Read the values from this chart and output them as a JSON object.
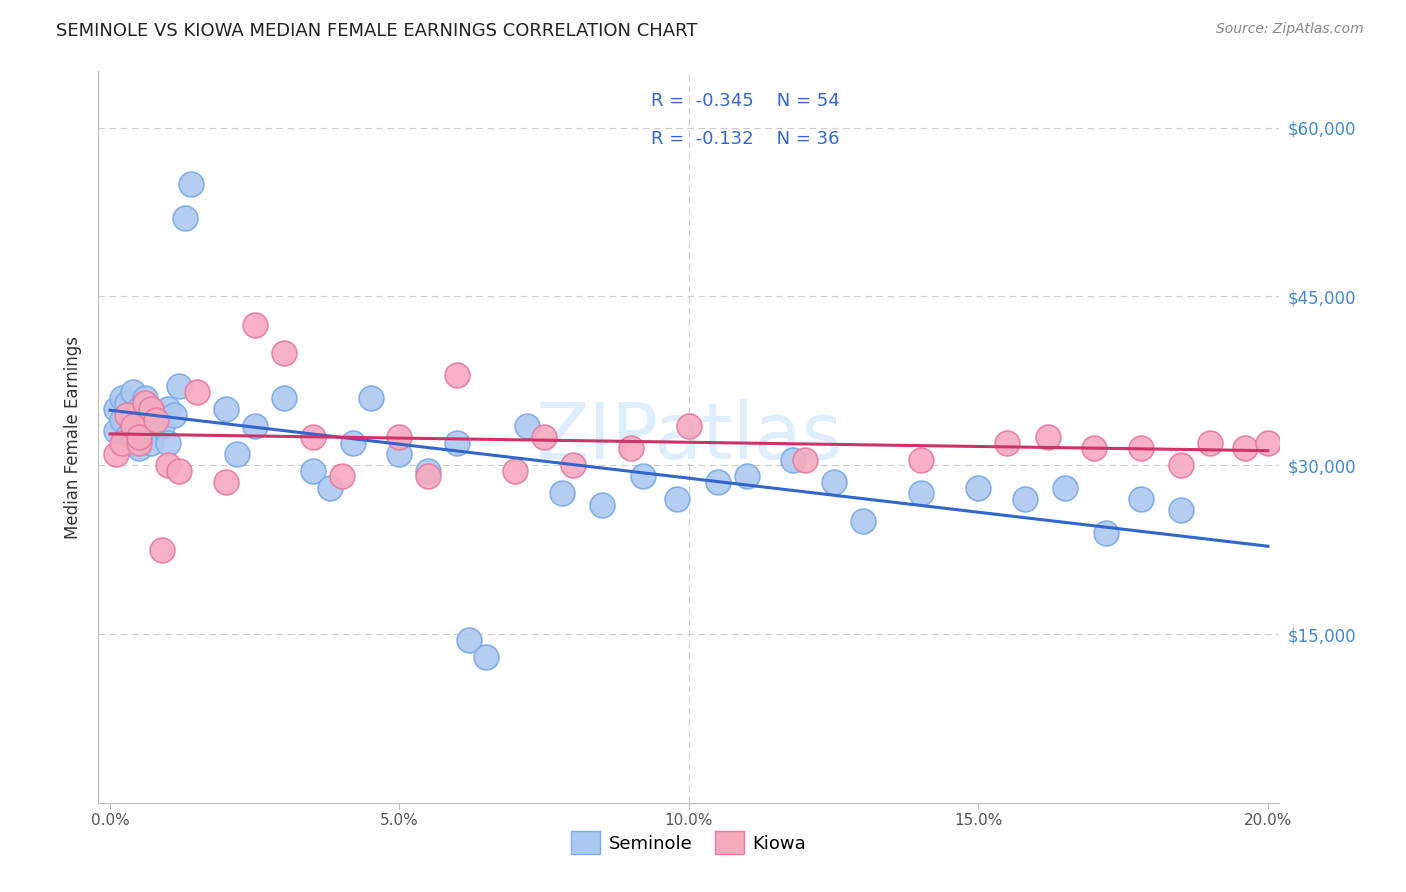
{
  "title": "SEMINOLE VS KIOWA MEDIAN FEMALE EARNINGS CORRELATION CHART",
  "source": "Source: ZipAtlas.com",
  "ylabel": "Median Female Earnings",
  "xlim": [
    -0.002,
    0.202
  ],
  "ylim": [
    0,
    65000
  ],
  "seminole_R": -0.345,
  "seminole_N": 54,
  "kiowa_R": -0.132,
  "kiowa_N": 36,
  "seminole_color": "#adc8f0",
  "seminole_edge": "#7aaae8",
  "kiowa_color": "#f5aabe",
  "kiowa_edge": "#e87aa0",
  "seminole_line_color": "#3366cc",
  "kiowa_line_color": "#cc3366",
  "grid_color": "#cccccc",
  "tick_label_color": "#555555",
  "right_label_color": "#4488cc",
  "title_color": "#222222",
  "source_color": "#888888",
  "watermark_color": "#ddeeff",
  "legend_edge": "#cccccc",
  "legend_text_color": "#3366cc",
  "seminole_x": [
    0.001,
    0.001,
    0.002,
    0.002,
    0.003,
    0.003,
    0.004,
    0.004,
    0.004,
    0.005,
    0.005,
    0.005,
    0.006,
    0.006,
    0.007,
    0.007,
    0.008,
    0.009,
    0.01,
    0.01,
    0.011,
    0.012,
    0.013,
    0.014,
    0.02,
    0.022,
    0.025,
    0.03,
    0.035,
    0.038,
    0.042,
    0.045,
    0.05,
    0.055,
    0.06,
    0.062,
    0.065,
    0.072,
    0.078,
    0.085,
    0.092,
    0.098,
    0.105,
    0.11,
    0.118,
    0.125,
    0.13,
    0.14,
    0.15,
    0.158,
    0.165,
    0.172,
    0.178,
    0.185
  ],
  "seminole_y": [
    35000,
    33000,
    36000,
    34000,
    35500,
    32500,
    36500,
    34000,
    32000,
    35000,
    33500,
    31500,
    36000,
    33000,
    35000,
    32000,
    34000,
    33500,
    35000,
    32000,
    34500,
    37000,
    52000,
    55000,
    35000,
    31000,
    33500,
    36000,
    29500,
    28000,
    32000,
    36000,
    31000,
    29500,
    32000,
    14500,
    13000,
    33500,
    27500,
    26500,
    29000,
    27000,
    28500,
    29000,
    30500,
    28500,
    25000,
    27500,
    28000,
    27000,
    28000,
    24000,
    27000,
    26000
  ],
  "kiowa_x": [
    0.001,
    0.002,
    0.003,
    0.004,
    0.005,
    0.005,
    0.006,
    0.007,
    0.008,
    0.009,
    0.01,
    0.012,
    0.015,
    0.02,
    0.025,
    0.03,
    0.035,
    0.04,
    0.05,
    0.055,
    0.06,
    0.07,
    0.075,
    0.08,
    0.09,
    0.1,
    0.12,
    0.14,
    0.155,
    0.162,
    0.17,
    0.178,
    0.185,
    0.19,
    0.196,
    0.2
  ],
  "kiowa_y": [
    31000,
    32000,
    34500,
    33500,
    32000,
    32500,
    35500,
    35000,
    34000,
    22500,
    30000,
    29500,
    36500,
    28500,
    42500,
    40000,
    32500,
    29000,
    32500,
    29000,
    38000,
    29500,
    32500,
    30000,
    31500,
    33500,
    30500,
    30500,
    32000,
    32500,
    31500,
    31500,
    30000,
    32000,
    31500,
    32000
  ]
}
